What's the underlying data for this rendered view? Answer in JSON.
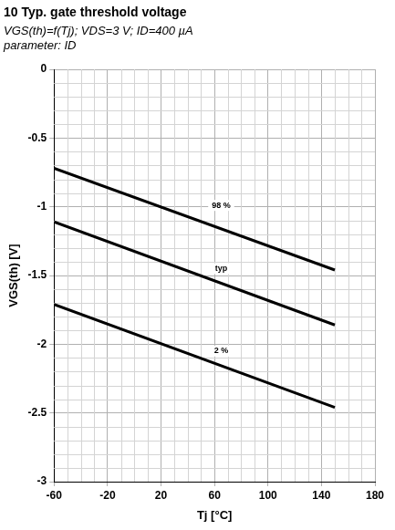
{
  "chart_data": {
    "type": "line",
    "title": "10 Typ. gate threshold voltage",
    "subtitle": [
      "VGS(th)=f(Tj); VDS=3 V; ID=400 µA",
      "parameter: ID"
    ],
    "x_label": "Tj [°C]",
    "y_label": "VGS(th) [V]",
    "series": [
      {
        "name": "98 %",
        "color": "#000000",
        "x": [
          -60,
          150
        ],
        "values": [
          -0.72,
          -1.46
        ]
      },
      {
        "name": "typ",
        "color": "#000000",
        "x": [
          -60,
          150
        ],
        "values": [
          -1.11,
          -1.86
        ]
      },
      {
        "name": "2 %",
        "color": "#000000",
        "x": [
          -60,
          150
        ],
        "values": [
          -1.71,
          -2.46
        ]
      }
    ],
    "annotations": [
      {
        "text": "98 %",
        "x": 65,
        "y": -0.99
      },
      {
        "text": "typ",
        "x": 65,
        "y": -1.45
      },
      {
        "text": "2 %",
        "x": 65,
        "y": -2.05
      }
    ],
    "xlim": [
      -60,
      180
    ],
    "xticks": [
      -60,
      -20,
      20,
      60,
      100,
      140,
      180
    ],
    "ylim": [
      -3,
      0
    ],
    "yticks": [
      -3,
      -2.5,
      -2,
      -1.5,
      -1,
      -0.5,
      0
    ],
    "grid": true
  }
}
